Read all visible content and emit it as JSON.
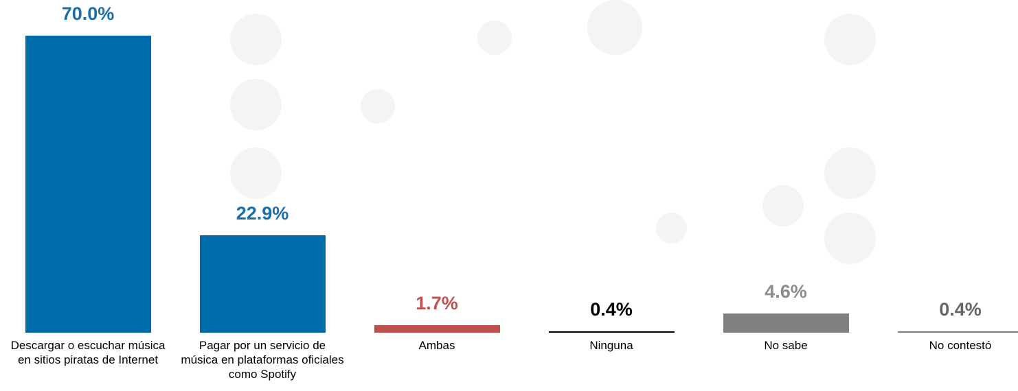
{
  "chart_data": {
    "type": "bar",
    "categories": [
      "Descargar o escuchar música en sitios piratas de Internet",
      "Pagar por un servicio de música en plataformas oficiales como Spotify",
      "Ambas",
      "Ninguna",
      "No sabe",
      "No contestó"
    ],
    "values": [
      70.0,
      22.9,
      1.7,
      0.4,
      4.6,
      0.4
    ],
    "value_labels": [
      "70.0%",
      "22.9%",
      "1.7%",
      "0.4%",
      "4.6%",
      "0.4%"
    ],
    "colors": [
      "#006bab",
      "#006bab",
      "#c0504d",
      "#000000",
      "#808080",
      "#7f7f7f"
    ],
    "value_label_colors": [
      "#1a6fa8",
      "#1a6fa8",
      "#c0504d",
      "#000000",
      "#8c8c8c",
      "#666666"
    ]
  }
}
